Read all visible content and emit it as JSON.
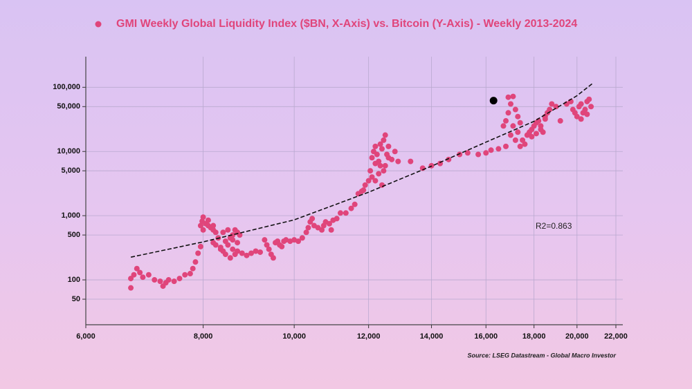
{
  "chart_data": {
    "type": "scatter",
    "series": [
      {
        "name": "GMI Weekly Global Liquidity Index ($BN, X-Axis) vs. Bitcoin (Y-Axis) - Weekly 2013-2024",
        "color": "#e0457b",
        "x": [
          6700,
          6700,
          6750,
          6800,
          6850,
          6900,
          7000,
          7100,
          7200,
          7250,
          7300,
          7350,
          7450,
          7550,
          7650,
          7750,
          7800,
          7850,
          7900,
          7950,
          7950,
          7980,
          8000,
          8050,
          8100,
          8150,
          8200,
          8250,
          8000,
          8100,
          8200,
          8200,
          8250,
          8300,
          8350,
          8400,
          8450,
          8500,
          8550,
          8600,
          8650,
          8700,
          8750,
          8400,
          8500,
          8600,
          8650,
          8700,
          8800,
          8900,
          9000,
          9100,
          9200,
          8550,
          8450,
          8350,
          8600,
          8700,
          9300,
          9350,
          9400,
          9450,
          9500,
          9550,
          9600,
          9650,
          9700,
          9750,
          9800,
          9900,
          10000,
          10100,
          10200,
          10300,
          10350,
          10400,
          10450,
          10500,
          10600,
          10700,
          10750,
          10800,
          10900,
          10950,
          11000,
          11100,
          11200,
          11350,
          11500,
          11600,
          11700,
          11800,
          11850,
          11900,
          12000,
          12050,
          12100,
          12150,
          12200,
          12250,
          12300,
          12350,
          12400,
          12450,
          12500,
          12550,
          12600,
          12700,
          12800,
          12900,
          12100,
          12200,
          12300,
          12400,
          12450,
          12500,
          12600,
          12200,
          12350,
          13300,
          13700,
          14000,
          14300,
          14600,
          15000,
          15300,
          15700,
          16000,
          16200,
          16500,
          16800,
          16700,
          16800,
          16900,
          17000,
          16900,
          17100,
          17200,
          17300,
          17400,
          17100,
          17300,
          17500,
          17600,
          17000,
          17200,
          17400,
          17700,
          17800,
          17900,
          18000,
          18100,
          18200,
          18300,
          18400,
          18500,
          18600,
          18700,
          18800,
          19000,
          19200,
          17900,
          18100,
          18300,
          18500,
          19500,
          19700,
          19800,
          19900,
          20000,
          20100,
          20200,
          20300,
          20400,
          20500,
          20600,
          20700,
          20500,
          20200
        ],
        "values": [
          75,
          105,
          120,
          150,
          130,
          110,
          120,
          100,
          95,
          80,
          90,
          100,
          95,
          105,
          120,
          125,
          150,
          190,
          260,
          330,
          700,
          820,
          950,
          750,
          700,
          650,
          600,
          550,
          600,
          850,
          700,
          380,
          350,
          450,
          300,
          280,
          400,
          350,
          450,
          500,
          600,
          550,
          500,
          550,
          600,
          300,
          250,
          280,
          260,
          240,
          260,
          280,
          270,
          220,
          250,
          320,
          420,
          380,
          420,
          350,
          300,
          250,
          220,
          380,
          400,
          350,
          330,
          400,
          420,
          400,
          420,
          400,
          450,
          550,
          650,
          800,
          900,
          700,
          650,
          600,
          700,
          800,
          750,
          600,
          850,
          900,
          1100,
          1100,
          1300,
          1500,
          2200,
          2400,
          2500,
          3000,
          3500,
          5000,
          8000,
          10000,
          12000,
          9000,
          7000,
          6000,
          11000,
          15000,
          18000,
          9000,
          8000,
          7500,
          10000,
          7000,
          4000,
          3500,
          4500,
          3000,
          5000,
          6000,
          12000,
          6500,
          13000,
          7000,
          5500,
          6000,
          6500,
          7500,
          9000,
          9500,
          9000,
          9500,
          10500,
          11000,
          12000,
          25000,
          30000,
          40000,
          55000,
          70000,
          72000,
          45000,
          35000,
          28000,
          25000,
          20000,
          15000,
          13000,
          18000,
          15000,
          12000,
          18000,
          20000,
          22000,
          25000,
          28000,
          30000,
          25000,
          20000,
          35000,
          40000,
          45000,
          55000,
          50000,
          30000,
          17000,
          19000,
          22000,
          32000,
          55000,
          60000,
          45000,
          40000,
          35000,
          50000,
          55000,
          40000,
          45000,
          60000,
          65000,
          50000,
          38000,
          32000
        ]
      }
    ],
    "highlight": {
      "x": 16300,
      "y": 62000,
      "color": "#000000"
    },
    "trendline": {
      "x": [
        6700,
        8000,
        10000,
        12000,
        14000,
        16000,
        18000,
        20000,
        20800
      ],
      "values": [
        226,
        390,
        860,
        2320,
        5900,
        14000,
        29500,
        74000,
        116000
      ],
      "color": "#111111"
    },
    "annotation": "R2=0.863",
    "source": "Source: LSEG Datastream - Global Macro Investor",
    "xlim": [
      6000,
      22000
    ],
    "x_log": true,
    "xticks": [
      {
        "value": 6000,
        "label": "6,000"
      },
      {
        "value": 8000,
        "label": "8,000"
      },
      {
        "value": 10000,
        "label": "10,000"
      },
      {
        "value": 12000,
        "label": "12,000"
      },
      {
        "value": 14000,
        "label": "14,000"
      },
      {
        "value": 16000,
        "label": "16,000"
      },
      {
        "value": 18000,
        "label": "18,000"
      },
      {
        "value": 20000,
        "label": "20,000"
      },
      {
        "value": 22000,
        "label": "22,000"
      }
    ],
    "ylim": [
      20,
      300000
    ],
    "y_log": true,
    "yticks": [
      50,
      100,
      500,
      {
        "value": 1000,
        "label": "1,000"
      },
      {
        "value": 5000,
        "label": "5,000"
      },
      {
        "value": 10000,
        "label": "10,000"
      },
      {
        "value": 50000,
        "label": "50,000"
      },
      {
        "value": 100000,
        "label": "100,000"
      }
    ],
    "grid": true
  }
}
